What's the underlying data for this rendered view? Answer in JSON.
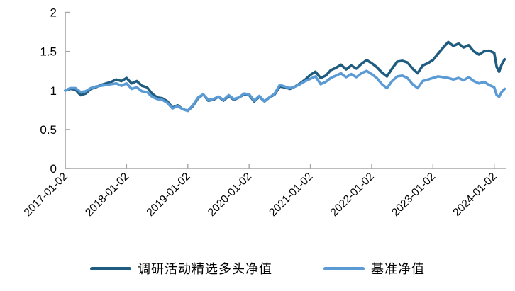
{
  "chart_data": {
    "type": "line",
    "title": "",
    "xlabel": "",
    "ylabel": "",
    "grid": false,
    "legend_position": "bottom",
    "axis_color": "#A6A6A6",
    "text_color": "#000000",
    "x_axis": {
      "range": [
        2017.0,
        2024.2
      ],
      "tick_positions": [
        2017,
        2018,
        2019,
        2020,
        2021,
        2022,
        2023,
        2024
      ],
      "tick_labels": [
        "2017-01-02",
        "2018-01-02",
        "2019-01-02",
        "2020-01-02",
        "2021-01-02",
        "2022-01-02",
        "2023-01-02",
        "2024-01-02"
      ],
      "label_rotation": -45
    },
    "y_axis": {
      "range": [
        0,
        2
      ],
      "tick_positions": [
        0,
        0.5,
        1,
        1.5,
        2
      ],
      "tick_labels": [
        "0",
        "0.5",
        "1",
        "1.5",
        "2"
      ]
    },
    "x": [
      2017.0,
      2017.083,
      2017.167,
      2017.25,
      2017.333,
      2017.417,
      2017.5,
      2017.583,
      2017.667,
      2017.75,
      2017.833,
      2017.917,
      2018.0,
      2018.083,
      2018.167,
      2018.25,
      2018.333,
      2018.417,
      2018.5,
      2018.583,
      2018.667,
      2018.75,
      2018.833,
      2018.917,
      2019.0,
      2019.083,
      2019.167,
      2019.25,
      2019.333,
      2019.417,
      2019.5,
      2019.583,
      2019.667,
      2019.75,
      2019.833,
      2019.917,
      2020.0,
      2020.083,
      2020.167,
      2020.25,
      2020.333,
      2020.417,
      2020.5,
      2020.583,
      2020.667,
      2020.75,
      2020.833,
      2020.917,
      2021.0,
      2021.083,
      2021.167,
      2021.25,
      2021.333,
      2021.417,
      2021.5,
      2021.583,
      2021.667,
      2021.75,
      2021.833,
      2021.917,
      2022.0,
      2022.083,
      2022.167,
      2022.25,
      2022.333,
      2022.417,
      2022.5,
      2022.583,
      2022.667,
      2022.75,
      2022.833,
      2022.917,
      2023.0,
      2023.083,
      2023.167,
      2023.25,
      2023.333,
      2023.417,
      2023.5,
      2023.583,
      2023.667,
      2023.75,
      2023.833,
      2023.917,
      2024.0,
      2024.04,
      2024.08,
      2024.12,
      2024.17
    ],
    "series": [
      {
        "name": "调研活动精选多头净值",
        "color": "#1F5C80",
        "values": [
          1.0,
          1.02,
          1.01,
          0.94,
          0.96,
          1.02,
          1.04,
          1.07,
          1.09,
          1.11,
          1.14,
          1.12,
          1.16,
          1.09,
          1.12,
          1.06,
          1.04,
          0.96,
          0.91,
          0.9,
          0.86,
          0.78,
          0.81,
          0.76,
          0.74,
          0.8,
          0.9,
          0.95,
          0.87,
          0.88,
          0.92,
          0.87,
          0.93,
          0.88,
          0.91,
          0.95,
          0.94,
          0.86,
          0.92,
          0.86,
          0.91,
          0.95,
          1.05,
          1.04,
          1.02,
          1.05,
          1.09,
          1.14,
          1.2,
          1.24,
          1.16,
          1.19,
          1.26,
          1.29,
          1.33,
          1.27,
          1.32,
          1.28,
          1.34,
          1.39,
          1.35,
          1.3,
          1.23,
          1.18,
          1.28,
          1.37,
          1.38,
          1.36,
          1.28,
          1.22,
          1.32,
          1.35,
          1.39,
          1.47,
          1.55,
          1.62,
          1.57,
          1.6,
          1.55,
          1.58,
          1.5,
          1.46,
          1.5,
          1.51,
          1.48,
          1.3,
          1.24,
          1.33,
          1.4
        ]
      },
      {
        "name": "基准净值",
        "color": "#5B9BD5",
        "values": [
          1.0,
          1.03,
          1.03,
          0.98,
          0.99,
          1.03,
          1.05,
          1.06,
          1.07,
          1.08,
          1.09,
          1.06,
          1.09,
          1.02,
          1.04,
          0.99,
          0.98,
          0.92,
          0.89,
          0.88,
          0.84,
          0.77,
          0.8,
          0.76,
          0.74,
          0.81,
          0.91,
          0.95,
          0.88,
          0.89,
          0.92,
          0.88,
          0.94,
          0.89,
          0.91,
          0.96,
          0.95,
          0.87,
          0.93,
          0.86,
          0.91,
          0.96,
          1.07,
          1.05,
          1.03,
          1.05,
          1.08,
          1.12,
          1.15,
          1.18,
          1.08,
          1.11,
          1.16,
          1.19,
          1.22,
          1.17,
          1.21,
          1.17,
          1.22,
          1.25,
          1.21,
          1.16,
          1.08,
          1.03,
          1.12,
          1.18,
          1.19,
          1.16,
          1.08,
          1.03,
          1.12,
          1.14,
          1.16,
          1.18,
          1.17,
          1.16,
          1.14,
          1.16,
          1.13,
          1.17,
          1.12,
          1.09,
          1.11,
          1.07,
          1.04,
          0.94,
          0.92,
          0.98,
          1.02
        ]
      }
    ]
  },
  "legend": {
    "items": [
      {
        "label": "调研活动精选多头净值"
      },
      {
        "label": "基准净值"
      }
    ]
  }
}
